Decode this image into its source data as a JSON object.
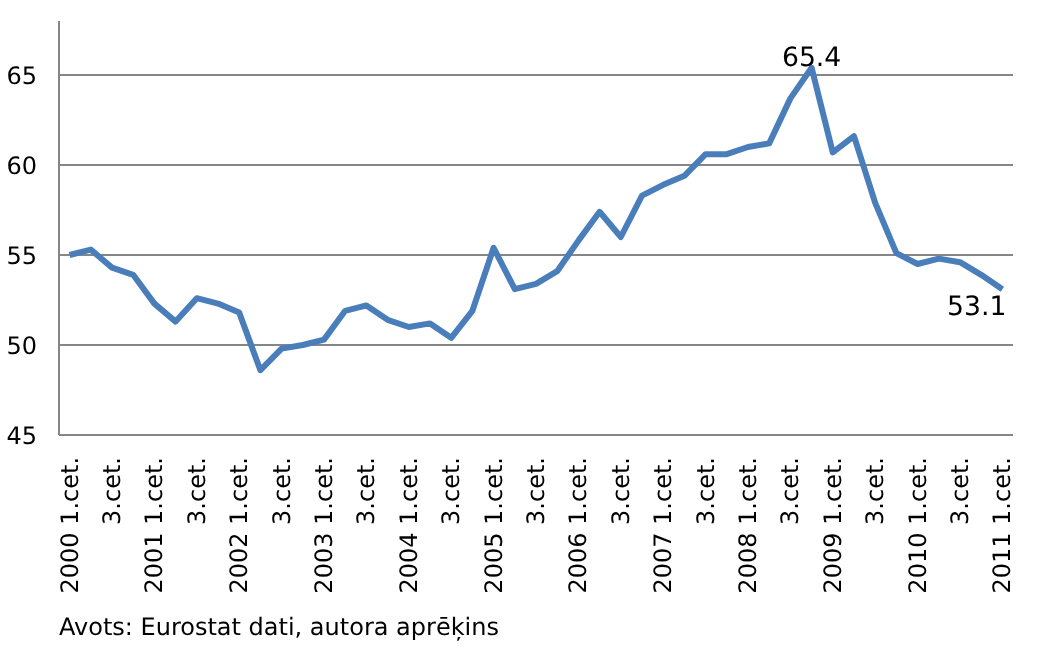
{
  "chart_data": {
    "type": "line",
    "categories": [
      "2000 1.cet.",
      null,
      "3.cet.",
      null,
      "2001 1.cet.",
      null,
      "3.cet.",
      null,
      "2002 1.cet.",
      null,
      "3.cet.",
      null,
      "2003 1.cet.",
      null,
      "3.cet.",
      null,
      "2004 1.cet.",
      null,
      "3.cet.",
      null,
      "2005 1.cet.",
      null,
      "3.cet.",
      null,
      "2006 1.cet.",
      null,
      "3.cet.",
      null,
      "2007 1.cet.",
      null,
      "3.cet.",
      null,
      "2008 1.cet.",
      null,
      "3.cet.",
      null,
      "2009 1.cet.",
      null,
      "3.cet.",
      null,
      "2010 1.cet.",
      null,
      "3.cet.",
      null,
      "2011 1.cet."
    ],
    "series": [
      {
        "color": "#4a7ebb",
        "values": [
          55.0,
          55.3,
          54.3,
          53.9,
          52.3,
          51.3,
          52.6,
          52.3,
          51.8,
          48.6,
          49.8,
          50.0,
          50.3,
          51.9,
          52.2,
          51.4,
          51.0,
          51.2,
          50.4,
          51.9,
          55.4,
          53.1,
          53.4,
          54.1,
          55.8,
          57.4,
          56.0,
          58.3,
          58.9,
          59.4,
          60.6,
          60.6,
          61.0,
          61.2,
          63.7,
          65.4,
          60.7,
          61.6,
          57.9,
          55.1,
          54.5,
          54.8,
          54.6,
          53.9,
          53.1
        ],
        "value_labels": [
          null,
          null,
          null,
          null,
          null,
          null,
          null,
          null,
          null,
          null,
          null,
          null,
          null,
          null,
          null,
          null,
          null,
          null,
          null,
          null,
          null,
          null,
          null,
          null,
          null,
          null,
          null,
          null,
          null,
          null,
          null,
          null,
          null,
          null,
          null,
          "65.4",
          null,
          null,
          null,
          null,
          null,
          null,
          null,
          null,
          "53.1"
        ]
      }
    ],
    "ylim": [
      45,
      68
    ],
    "yticks": [
      45,
      50,
      55,
      60,
      65
    ],
    "grid": "y",
    "line_style": "solid",
    "marker": "none",
    "annotations": [
      "Avots: Eurostat dati, autora aprēķins"
    ]
  }
}
